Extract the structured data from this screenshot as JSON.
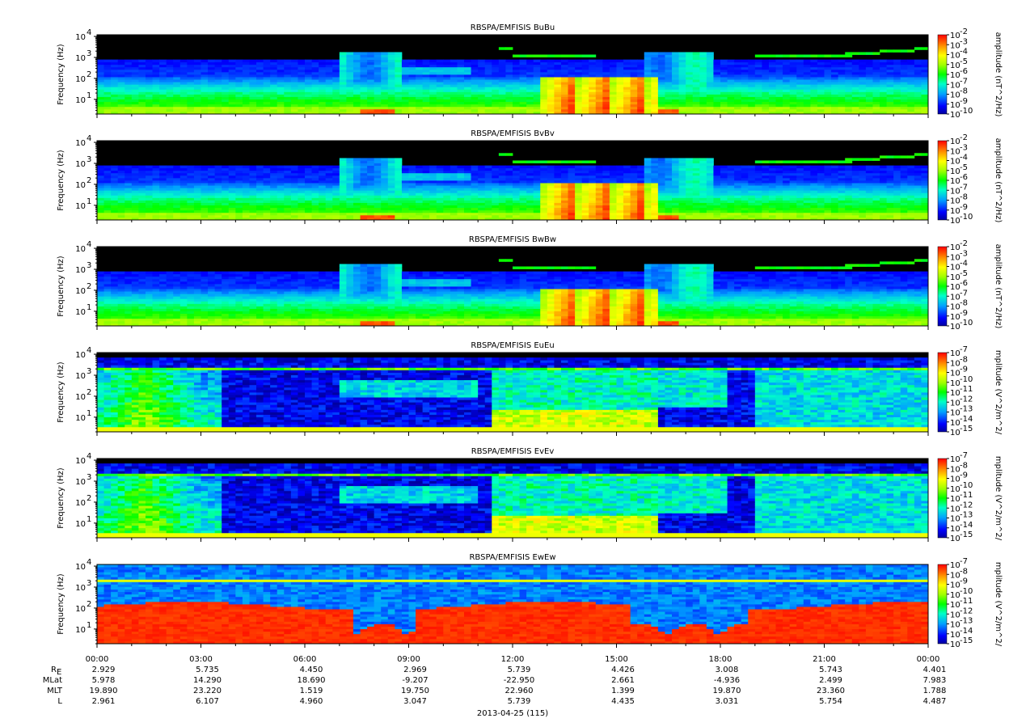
{
  "chart_data": {
    "type": "heatmap",
    "x_axis": {
      "tick_labels": [
        "00:00",
        "03:00",
        "06:00",
        "09:00",
        "12:00",
        "15:00",
        "18:00",
        "21:00",
        "00:00"
      ],
      "date_label": "2013-04-25 (115)"
    },
    "ephemeris": {
      "row_labels": [
        "R_E",
        "MLat",
        "MLT",
        "L"
      ],
      "rows": [
        [
          "2.929",
          "5.735",
          "4.450",
          "2.969",
          "5.739",
          "4.426",
          "3.008",
          "5.743",
          "4.401"
        ],
        [
          "5.978",
          "14.290",
          "18.690",
          "-9.207",
          "-22.950",
          "2.661",
          "-4.936",
          "2.499",
          "7.983"
        ],
        [
          "19.890",
          "23.220",
          "1.519",
          "19.750",
          "22.960",
          "1.399",
          "19.870",
          "23.360",
          "1.788"
        ],
        [
          "2.961",
          "6.107",
          "4.960",
          "3.047",
          "5.739",
          "4.435",
          "3.031",
          "5.754",
          "4.487"
        ]
      ]
    },
    "panels": [
      {
        "title": "RBSPA/EMFISIS  BuBu",
        "ylabel": "Frequency (Hz)",
        "ytick_exponents": [
          "1",
          "2",
          "3",
          "4"
        ],
        "ylim": [
          2,
          12000
        ],
        "log_y": true,
        "colorbar_label": "amplitude (nT^2/Hz)",
        "colorbar_exponents": [
          "-2",
          "-3",
          "-4",
          "-5",
          "-6",
          "-7",
          "-8",
          "-9",
          "-10"
        ],
        "clim": [
          1e-10,
          0.01
        ],
        "kind": "B",
        "burst": true
      },
      {
        "title": "RBSPA/EMFISIS  BvBv",
        "ylabel": "Frequency (Hz)",
        "ytick_exponents": [
          "1",
          "2",
          "3",
          "4"
        ],
        "ylim": [
          2,
          12000
        ],
        "log_y": true,
        "colorbar_label": "amplitude (nT^2/Hz)",
        "colorbar_exponents": [
          "-2",
          "-3",
          "-4",
          "-5",
          "-6",
          "-7",
          "-8",
          "-9",
          "-10"
        ],
        "clim": [
          1e-10,
          0.01
        ],
        "kind": "B",
        "burst": true
      },
      {
        "title": "RBSPA/EMFISIS  BwBw",
        "ylabel": "Frequency (Hz)",
        "ytick_exponents": [
          "1",
          "2",
          "3",
          "4"
        ],
        "ylim": [
          2,
          12000
        ],
        "log_y": true,
        "colorbar_label": "amplitude (nT^2/Hz)",
        "colorbar_exponents": [
          "-2",
          "-3",
          "-4",
          "-5",
          "-6",
          "-7",
          "-8",
          "-9",
          "-10"
        ],
        "clim": [
          1e-10,
          0.01
        ],
        "kind": "B",
        "burst": true
      },
      {
        "title": "RBSPA/EMFISIS  EuEu",
        "ylabel": "Frequency (Hz)",
        "ytick_exponents": [
          "1",
          "2",
          "3",
          "4"
        ],
        "ylim": [
          2,
          12000
        ],
        "log_y": true,
        "colorbar_label": "mplitude (V^2/m^2/",
        "colorbar_exponents": [
          "-7",
          "-8",
          "-9",
          "-10",
          "-11",
          "-12",
          "-13",
          "-14",
          "-15"
        ],
        "clim": [
          1e-15,
          1e-07
        ],
        "kind": "E",
        "burst": false
      },
      {
        "title": "RBSPA/EMFISIS  EvEv",
        "ylabel": "Frequency (Hz)",
        "ytick_exponents": [
          "1",
          "2",
          "3",
          "4"
        ],
        "ylim": [
          2,
          12000
        ],
        "log_y": true,
        "colorbar_label": "mplitude (V^2/m^2/",
        "colorbar_exponents": [
          "-7",
          "-8",
          "-9",
          "-10",
          "-11",
          "-12",
          "-13",
          "-14",
          "-15"
        ],
        "clim": [
          1e-15,
          1e-07
        ],
        "kind": "E",
        "burst": false
      },
      {
        "title": "RBSPA/EMFISIS  EwEw",
        "ylabel": "Frequency (Hz)",
        "ytick_exponents": [
          "1",
          "2",
          "3",
          "4"
        ],
        "ylim": [
          2,
          12000
        ],
        "log_y": true,
        "colorbar_label": "mplitude (V^2/m^2/",
        "colorbar_exponents": [
          "-7",
          "-8",
          "-9",
          "-10",
          "-11",
          "-12",
          "-13",
          "-14",
          "-15"
        ],
        "clim": [
          1e-15,
          1e-07
        ],
        "kind": "Ew",
        "burst": false
      }
    ]
  }
}
